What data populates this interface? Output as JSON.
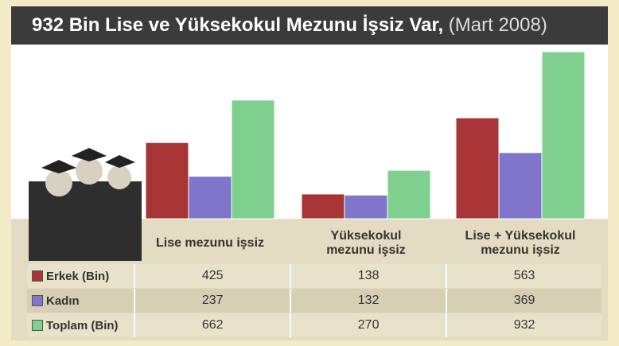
{
  "chart_data": {
    "type": "bar",
    "title": "932 Bin Lise ve Yüksekokul Mezunu İşsiz Var,",
    "subtitle": "(Mart 2008)",
    "categories": [
      "Lise mezunu işsiz",
      "Yüksekokul mezunu işsiz",
      "Lise + Yüksekokul mezunu işsiz"
    ],
    "series": [
      {
        "name": "Erkek (Bin)",
        "color": "#a83535",
        "values": [
          425,
          138,
          563
        ]
      },
      {
        "name": "Kadın",
        "color": "#7f76cc",
        "values": [
          237,
          132,
          369
        ]
      },
      {
        "name": "Toplam (Bin)",
        "color": "#7fd08f",
        "values": [
          662,
          270,
          932
        ]
      }
    ],
    "ylim": [
      0,
      932
    ]
  }
}
